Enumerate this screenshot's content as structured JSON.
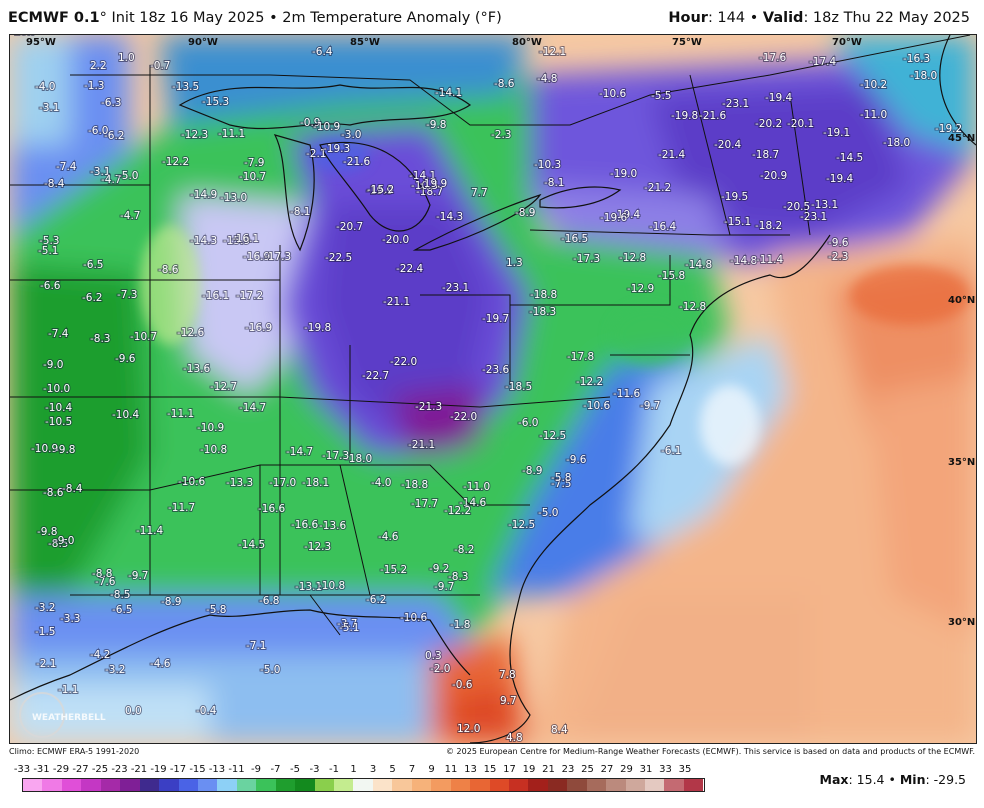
{
  "header": {
    "model": "ECMWF 0.1",
    "deg": "°",
    "init": " Init 18z 16 May 2025",
    "bullet": " • ",
    "field": "2m Temperature Anomaly (°F)",
    "hour_label": "Hour",
    "hour_value": ": 144",
    "valid_label": "Valid",
    "valid_value": ": 18z Thu 22 May 2025"
  },
  "axes": {
    "longitudes": [
      "95°W",
      "90°W",
      "85°W",
      "80°W",
      "75°W",
      "70°W"
    ],
    "latitudes": [
      "45°N",
      "40°N",
      "35°N",
      "30°N"
    ]
  },
  "map_values": [
    "-20.0",
    "-22.5",
    "-22.4",
    "-23.1",
    "-19.7",
    "-21.1",
    "-22.0",
    "-22.7",
    "-21.3",
    "-22.0",
    "-21.1",
    "-23.6",
    "-19.8",
    "-18.8",
    "-18.0",
    "-17.3",
    "-14.7",
    "-14.7",
    "-16.9",
    "-17.2",
    "-16.1",
    "-15.9",
    "-14.3",
    "-13.0",
    "-14.9",
    "-12.3",
    "-11.1",
    "-7.9",
    "-10.7",
    "-12.2",
    "-15.3",
    "-13.5",
    "-21.6",
    "-19.9",
    "-18.7",
    "-14.1",
    "-8.1",
    "-20.7",
    "-16.1",
    "-16.9",
    "-17.3",
    "-12.6",
    "-13.6",
    "-12.7",
    "-10.4",
    "-11.1",
    "-10.9",
    "-10.8",
    "-10.6",
    "-13.3",
    "-17.0",
    "-18.1",
    "-16.6",
    "-14.5",
    "-13.1",
    "-10.8",
    "-6.8",
    "-5.8",
    "-7.1",
    "-5.0",
    "-4.6",
    "-3.2",
    "-0.4",
    "0.0",
    "-1.1",
    "-2.1",
    "-1.5",
    "-3.3",
    "-3.2",
    "-4.2",
    "-8.5",
    "-7.6",
    "-8.8",
    "-9.7",
    "-8.9",
    "-6.5",
    "-11.4",
    "-11.7",
    "-8.5",
    "-9.8",
    "-9.0",
    "-8.6",
    "-8.4",
    "-10.9",
    "-9.8",
    "-10.5",
    "-10.4",
    "-10.0",
    "-9.0",
    "-7.4",
    "-8.3",
    "-9.6",
    "-10.7",
    "-6.2",
    "-7.3",
    "-8.6",
    "-6.6",
    "-5.1",
    "-5.3",
    "-6.5",
    "-4.7",
    "-8.4",
    "-7.4",
    "-3.1",
    "-4.7",
    "-5.0",
    "-6.0",
    "-6.2",
    "-3.1",
    "-4.0",
    "-1.3",
    "2.2",
    "1.0",
    "-0.7",
    "-6.3",
    "-6.4",
    "-0.9",
    "-2.1",
    "-10.9",
    "-19.3",
    "-3.0",
    "-9.8",
    "-14.1",
    "-2.3",
    "-8.6",
    "-4.8",
    "-12.1",
    "-10.6",
    "-5.5",
    "-17.6",
    "-17.4",
    "-16.3",
    "-18.0",
    "-10.2",
    "-11.0",
    "-19.2",
    "-18.0",
    "-14.5",
    "-19.1",
    "-19.4",
    "-23.1",
    "-19.8",
    "-21.6",
    "-20.2",
    "-20.1",
    "-20.4",
    "-18.7",
    "-20.9",
    "-19.4",
    "-20.5",
    "-13.1",
    "-23.1",
    "-18.2",
    "-15.1",
    "-19.5",
    "-21.4",
    "-21.2",
    "-19.0",
    "-10.3",
    "-8.1",
    "-19.4",
    "-19.6",
    "-16.4",
    "-16.5",
    "-17.3",
    "-12.8",
    "-12.9",
    "-15.8",
    "-14.8",
    "-12.8",
    "-14.8",
    "-11.4",
    "-9.6",
    "-2.3",
    "1.3",
    "-18.3",
    "-18.5",
    "-17.8",
    "-12.2",
    "-10.6",
    "-11.6",
    "-9.7",
    "-6.0",
    "-12.5",
    "-9.6",
    "-7.5",
    "-8.9",
    "-5.8",
    "-6.1",
    "-4.0",
    "-18.8",
    "-17.7",
    "-14.6",
    "-12.2",
    "-11.0",
    "-12.5",
    "-5.0",
    "-4.6",
    "-12.3",
    "-13.6",
    "-16.6",
    "-15.2",
    "-9.2",
    "-9.7",
    "-8.3",
    "-8.2",
    "-6.2",
    "-10.6",
    "-3.7",
    "-5.1",
    "-1.8",
    "0.3",
    "-2.0",
    "-0.6",
    "7.8",
    "9.7",
    "8.4",
    "4.8",
    "12.0",
    "7.7",
    "-14.3",
    "-8.9",
    "-10.5",
    "-15.2",
    "-19.9",
    "-18.7"
  ],
  "credits": {
    "climo": "Climo: ECMWF ERA-5 1991-2020",
    "copyright": "© 2025 European Centre for Medium-Range Weather Forecasts (ECMWF). This service is based on data and products of the ECMWF."
  },
  "logo_text": "WEATHERBELL",
  "scale": {
    "labels": [
      "-33",
      "-31",
      "-29",
      "-27",
      "-25",
      "-23",
      "-21",
      "-19",
      "-17",
      "-15",
      "-13",
      "-11",
      "-9",
      "-7",
      "-5",
      "-3",
      "-1",
      "1",
      "3",
      "5",
      "7",
      "9",
      "11",
      "13",
      "15",
      "17",
      "19",
      "21",
      "23",
      "25",
      "27",
      "29",
      "31",
      "33",
      "35"
    ],
    "colors": [
      "#f9a6f0",
      "#f07ae6",
      "#e04fd8",
      "#c437c4",
      "#a52aa8",
      "#7f1f96",
      "#3f2a8e",
      "#3b3fc4",
      "#4a63e6",
      "#6a8ff2",
      "#8dd0f6",
      "#6ad3a0",
      "#3bc25a",
      "#1f9e2e",
      "#138a1e",
      "#8acf4c",
      "#c4ec8f",
      "#f2f7f2",
      "#fbe3c9",
      "#f8c79a",
      "#f6b27a",
      "#f39b60",
      "#ee8147",
      "#e86634",
      "#de4a27",
      "#c73022",
      "#a3201b",
      "#8a2a22",
      "#8f4a3c",
      "#a66b5c",
      "#bb8a7d",
      "#cfa89c",
      "#e4c9c1",
      "#c46a72",
      "#b23748"
    ]
  },
  "stats": {
    "max_label": "Max",
    "max_value": ": 15.4",
    "sep": " • ",
    "min_label": "Min",
    "min_value": ": -29.5"
  }
}
